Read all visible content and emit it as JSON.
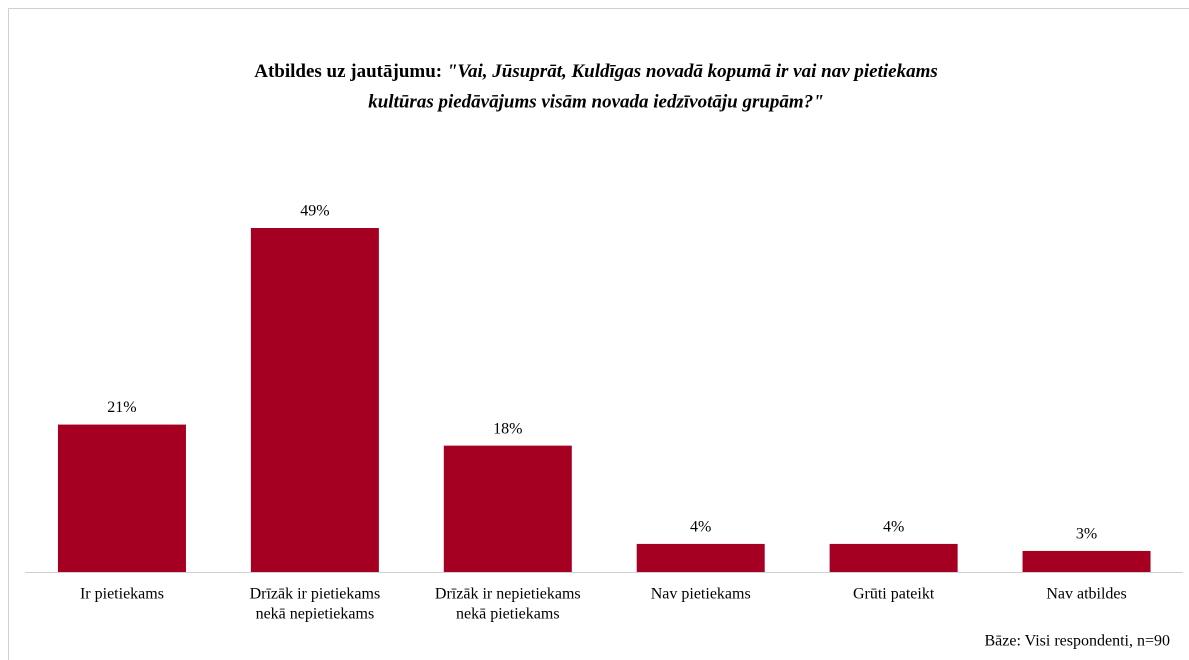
{
  "chart_data": {
    "type": "bar",
    "title_prefix": "Atbildes uz jautājumu:",
    "title_question": [
      "\"Vai, Jūsuprāt, Kuldīgas novadā kopumā ir vai nav pietiekams",
      "kultūras piedāvājums visām novada iedzīvotāju grupām?\""
    ],
    "categories": [
      [
        "Ir pietiekams"
      ],
      [
        "Drīzāk ir pietiekams",
        "nekā nepietiekams"
      ],
      [
        "Drīzāk ir nepietiekams",
        "nekā pietiekams"
      ],
      [
        "Nav pietiekams"
      ],
      [
        "Grūti pateikt"
      ],
      [
        "Nav atbildes"
      ]
    ],
    "values": [
      21,
      49,
      18,
      4,
      4,
      3
    ],
    "value_labels": [
      "21%",
      "49%",
      "18%",
      "4%",
      "4%",
      "3%"
    ],
    "color": "#a50021",
    "footnote": "Bāze:  Visi respondenti, n=90"
  }
}
